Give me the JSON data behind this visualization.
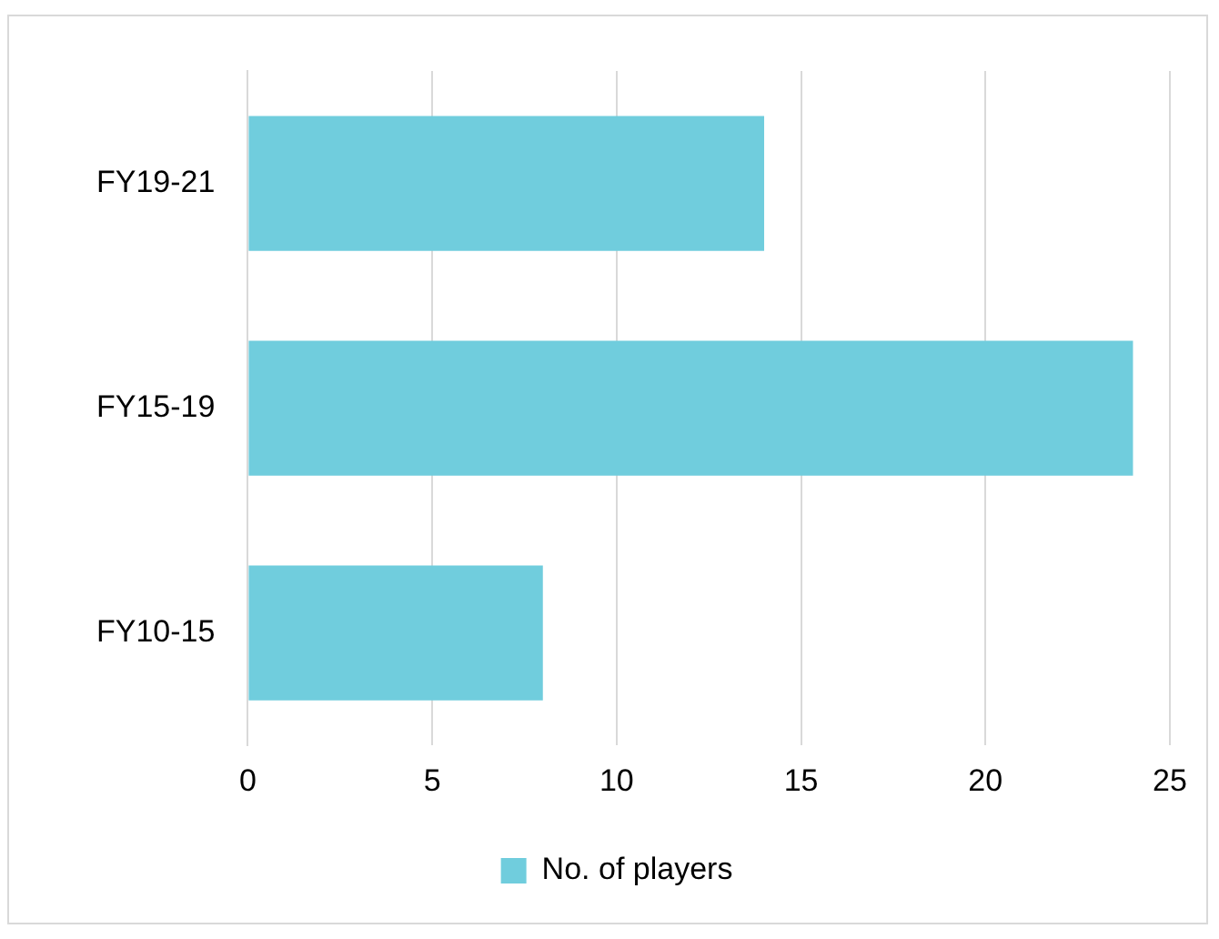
{
  "chart_data": {
    "type": "bar",
    "orientation": "horizontal",
    "categories": [
      "FY19-21",
      "FY15-19",
      "FY10-15"
    ],
    "series": [
      {
        "name": "No. of players",
        "color": "#70cddd",
        "values": [
          14,
          24,
          8
        ]
      }
    ],
    "xlim": [
      0,
      25
    ],
    "xticks": [
      0,
      5,
      10,
      15,
      20,
      25
    ],
    "grid": "x",
    "legend": "bottom"
  }
}
